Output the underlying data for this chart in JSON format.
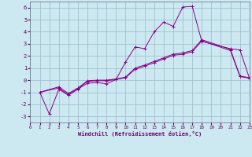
{
  "xlabel": "Windchill (Refroidissement éolien,°C)",
  "bg_color": "#cce8f0",
  "grid_color": "#99bbcc",
  "line_color": "#880088",
  "xlim": [
    0,
    23
  ],
  "ylim": [
    -3.5,
    6.5
  ],
  "yticks": [
    -3,
    -2,
    -1,
    0,
    1,
    2,
    3,
    4,
    5,
    6
  ],
  "xticks": [
    0,
    1,
    2,
    3,
    4,
    5,
    6,
    7,
    8,
    9,
    10,
    11,
    12,
    13,
    14,
    15,
    16,
    17,
    18,
    19,
    20,
    21,
    22,
    23
  ],
  "line1_x": [
    1,
    2,
    3,
    4,
    5,
    6,
    7,
    8,
    9,
    10,
    11,
    12,
    13,
    14,
    15,
    16,
    17,
    18,
    21,
    22,
    23
  ],
  "line1_y": [
    -1,
    -2.8,
    -0.75,
    -1.25,
    -0.75,
    -0.25,
    -0.2,
    -0.3,
    0.05,
    1.5,
    2.75,
    2.6,
    4.0,
    4.8,
    4.45,
    6.05,
    6.1,
    3.2,
    2.6,
    2.5,
    0.15
  ],
  "line2_x": [
    1,
    3,
    4,
    5,
    6,
    7,
    8,
    9,
    10,
    11,
    12,
    13,
    14,
    15,
    16,
    17,
    18,
    21,
    22,
    23
  ],
  "line2_y": [
    -1,
    -0.65,
    -1.2,
    -0.7,
    -0.1,
    -0.05,
    -0.05,
    0.05,
    0.2,
    0.9,
    1.15,
    1.45,
    1.75,
    2.05,
    2.15,
    2.35,
    3.25,
    2.45,
    0.3,
    0.15
  ],
  "line3_x": [
    1,
    3,
    4,
    5,
    6,
    7,
    8,
    9,
    10,
    11,
    12,
    13,
    14,
    15,
    16,
    17,
    18,
    21,
    22,
    23
  ],
  "line3_y": [
    -1,
    -0.55,
    -1.1,
    -0.65,
    -0.05,
    0.0,
    0.0,
    0.1,
    0.25,
    1.0,
    1.25,
    1.55,
    1.85,
    2.15,
    2.25,
    2.45,
    3.35,
    2.55,
    0.35,
    0.2
  ]
}
